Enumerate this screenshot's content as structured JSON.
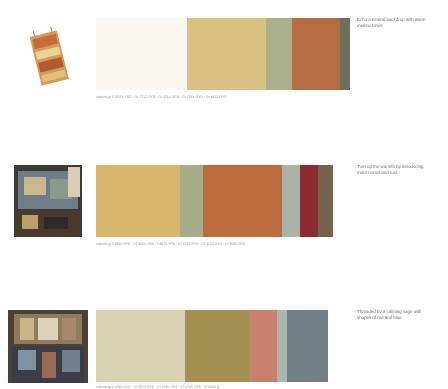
{
  "rows": [
    {
      "caption": "Echo a neutral backdrop with warm mellow tones",
      "codes": "colours:gr 0 GRFA YSD · Gr 7712-OYD · Gr 4214-ORD · Gr 7214-OYD · Gr 6513-OYD",
      "swatches": [
        {
          "color": "#fbf8f2",
          "share": 0.36
        },
        {
          "color": "#d9c182",
          "share": 0.31
        },
        {
          "color": "#a9b18b",
          "share": 0.1
        },
        {
          "color": "#b66c41",
          "share": 0.19
        },
        {
          "color": "#6f6e5a",
          "share": 0.04
        }
      ]
    },
    {
      "caption": "Turn up the warmth by introducing more russet and rust",
      "codes": "colours:gr 0 4810-RYD · 07 4020-YRA · 4 8070-YRA · 07 6010-RYD · 07 1120-OYD · 07 9020-RYD",
      "swatches": [
        {
          "color": "#d6b76b",
          "share": 0.33
        },
        {
          "color": "#a6ad88",
          "share": 0.09
        },
        {
          "color": "#bd6c3e",
          "share": 0.31
        },
        {
          "color": "#a8b4a8",
          "share": 0.07
        },
        {
          "color": "#8b2b30",
          "share": 0.07
        },
        {
          "color": "#76624f",
          "share": 0.06
        }
      ]
    },
    {
      "caption": "Threaded by a calming sage with shapes of red and blue",
      "codes": "colours:gr 0 4240-OYD · 07 8970-RYD · 07 6040-YRA · 07 4740-YRA · 07 6020-B",
      "swatches": [
        {
          "color": "#d9d3b3",
          "share": 0.35
        },
        {
          "color": "#a38f4f",
          "share": 0.25
        },
        {
          "color": "#c9806e",
          "share": 0.11
        },
        {
          "color": "#a8b7b0",
          "share": 0.04
        },
        {
          "color": "#737f86",
          "share": 0.16
        }
      ]
    }
  ]
}
